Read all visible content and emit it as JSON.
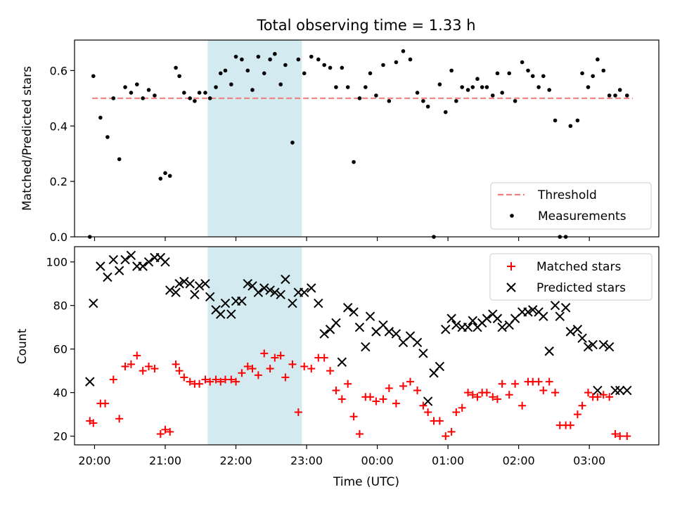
{
  "chart_data": [
    {
      "type": "scatter",
      "title": "Total observing time = 1.33 h",
      "xlabel": "",
      "ylabel": "Matched/Predicted stars",
      "xlim": [
        "19:43",
        "03:59"
      ],
      "ylim": [
        0,
        0.71
      ],
      "yticks": [
        0.0,
        0.2,
        0.4,
        0.6
      ],
      "ytick_labels": [
        "0.0",
        "0.2",
        "0.4",
        "0.6"
      ],
      "grid": false,
      "legend_position": "lower right",
      "shaded_span": {
        "x_start": "21:36",
        "x_end": "22:56",
        "color": "#d3eaf0"
      },
      "series": [
        {
          "name": "Threshold",
          "kind": "dashed-line",
          "color": "#f08080",
          "x": [
            "19:58",
            "23:00",
            "03:37"
          ],
          "y": [
            0.5,
            0.5,
            0.5
          ]
        },
        {
          "name": "Measurements",
          "kind": "scatter-dot",
          "color": "#000000",
          "x": [
            "19:56",
            "19:59",
            "20:05",
            "20:11",
            "20:16",
            "20:21",
            "20:26",
            "20:31",
            "20:36",
            "20:41",
            "20:46",
            "20:51",
            "20:56",
            "21:00",
            "21:04",
            "21:09",
            "21:12",
            "21:16",
            "21:21",
            "21:25",
            "21:29",
            "21:34",
            "21:38",
            "21:43",
            "21:47",
            "21:51",
            "21:56",
            "22:00",
            "22:05",
            "22:10",
            "22:14",
            "22:19",
            "22:24",
            "22:29",
            "22:33",
            "22:38",
            "22:42",
            "22:48",
            "22:53",
            "22:58",
            "23:04",
            "23:10",
            "23:15",
            "23:20",
            "23:25",
            "23:30",
            "23:35",
            "23:40",
            "23:45",
            "23:50",
            "23:54",
            "23:59",
            "00:05",
            "00:10",
            "00:16",
            "00:22",
            "00:28",
            "00:34",
            "00:39",
            "00:43",
            "00:48",
            "00:53",
            "00:58",
            "01:03",
            "01:07",
            "01:12",
            "01:17",
            "01:21",
            "01:25",
            "01:29",
            "01:33",
            "01:38",
            "01:42",
            "01:46",
            "01:52",
            "01:57",
            "02:03",
            "02:08",
            "02:12",
            "02:17",
            "02:21",
            "02:26",
            "02:31",
            "02:35",
            "02:40",
            "02:44",
            "02:50",
            "02:54",
            "02:59",
            "03:03",
            "03:07",
            "03:12",
            "03:17",
            "03:22",
            "03:26",
            "03:32"
          ],
          "y": [
            0.0,
            0.58,
            0.43,
            0.36,
            0.5,
            0.28,
            0.54,
            0.52,
            0.55,
            0.5,
            0.53,
            0.51,
            0.21,
            0.23,
            0.22,
            0.61,
            0.58,
            0.52,
            0.5,
            0.49,
            0.52,
            0.52,
            0.5,
            0.54,
            0.59,
            0.6,
            0.55,
            0.65,
            0.64,
            0.6,
            0.53,
            0.65,
            0.59,
            0.64,
            0.66,
            0.55,
            0.62,
            0.34,
            0.64,
            0.59,
            0.65,
            0.64,
            0.62,
            0.61,
            0.54,
            0.61,
            0.54,
            0.27,
            0.5,
            0.54,
            0.59,
            0.51,
            0.62,
            0.49,
            0.63,
            0.67,
            0.64,
            0.52,
            0.49,
            0.47,
            0.0,
            0.55,
            0.45,
            0.6,
            0.49,
            0.54,
            0.53,
            0.54,
            0.57,
            0.54,
            0.54,
            0.51,
            0.59,
            0.52,
            0.59,
            0.49,
            0.63,
            0.6,
            0.58,
            0.54,
            0.58,
            0.53,
            0.42,
            0.0,
            0.0,
            0.4,
            0.42,
            0.59,
            0.54,
            0.58,
            0.64,
            0.6,
            0.51,
            0.51,
            0.53,
            0.51
          ],
          "visible_points": 94
        }
      ]
    },
    {
      "type": "scatter",
      "title": "",
      "xlabel": "Time (UTC)",
      "ylabel": "Count",
      "xlim": [
        "19:43",
        "03:59"
      ],
      "ylim": [
        16,
        107
      ],
      "yticks": [
        20,
        40,
        60,
        80,
        100
      ],
      "ytick_labels": [
        "20",
        "40",
        "60",
        "80",
        "100"
      ],
      "xticks": [
        "20:00",
        "21:00",
        "22:00",
        "23:00",
        "00:00",
        "01:00",
        "02:00",
        "03:00"
      ],
      "xtick_labels": [
        "20:00",
        "21:00",
        "22:00",
        "23:00",
        "00:00",
        "01:00",
        "02:00",
        "03:00"
      ],
      "grid": false,
      "legend_position": "upper right",
      "shaded_span": {
        "x_start": "21:36",
        "x_end": "22:56",
        "color": "#d3eaf0"
      },
      "series": [
        {
          "name": "Matched stars",
          "kind": "plus",
          "color": "#ff0000",
          "x": [
            "19:56",
            "19:59",
            "20:05",
            "20:09",
            "20:16",
            "20:21",
            "20:26",
            "20:31",
            "20:36",
            "20:41",
            "20:46",
            "20:51",
            "20:56",
            "21:00",
            "21:04",
            "21:09",
            "21:12",
            "21:16",
            "21:21",
            "21:25",
            "21:29",
            "21:34",
            "21:38",
            "21:43",
            "21:47",
            "21:51",
            "21:56",
            "22:00",
            "22:05",
            "22:10",
            "22:14",
            "22:19",
            "22:24",
            "22:29",
            "22:33",
            "22:38",
            "22:42",
            "22:48",
            "22:53",
            "22:58",
            "23:04",
            "23:10",
            "23:15",
            "23:20",
            "23:25",
            "23:30",
            "23:35",
            "23:40",
            "23:45",
            "23:50",
            "23:54",
            "23:59",
            "00:05",
            "00:10",
            "00:16",
            "00:22",
            "00:28",
            "00:34",
            "00:39",
            "00:43",
            "00:48",
            "00:53",
            "00:58",
            "01:03",
            "01:07",
            "01:12",
            "01:17",
            "01:21",
            "01:25",
            "01:29",
            "01:33",
            "01:38",
            "01:42",
            "01:46",
            "01:52",
            "01:57",
            "02:03",
            "02:08",
            "02:12",
            "02:17",
            "02:21",
            "02:26",
            "02:31",
            "02:35",
            "02:40",
            "02:44",
            "02:50",
            "02:54",
            "02:59",
            "03:03",
            "03:07",
            "03:12",
            "03:17",
            "03:22",
            "03:26",
            "03:32"
          ],
          "y": [
            27,
            26,
            35,
            35,
            46,
            28,
            52,
            53,
            57,
            50,
            52,
            51,
            21,
            23,
            22,
            53,
            50,
            47,
            45,
            44,
            44,
            46,
            45,
            46,
            45,
            46,
            46,
            45,
            49,
            52,
            51,
            48,
            58,
            51,
            56,
            57,
            47,
            53,
            31,
            52,
            51,
            56,
            56,
            50,
            41,
            37,
            44,
            29,
            21,
            38,
            38,
            36,
            37,
            42,
            35,
            43,
            45,
            41,
            34,
            31,
            27,
            27,
            20,
            22,
            31,
            33,
            40,
            39,
            38,
            40,
            40,
            38,
            37,
            44,
            39,
            44,
            34,
            45,
            45,
            45,
            41,
            45,
            40,
            25,
            25,
            25,
            30,
            34,
            40,
            38,
            38,
            39,
            38,
            21,
            20,
            20
          ],
          "visible_points": 94
        },
        {
          "name": "Predicted stars",
          "kind": "x",
          "color": "#000000",
          "x": [
            "19:56",
            "19:59",
            "20:05",
            "20:11",
            "20:16",
            "20:21",
            "20:26",
            "20:31",
            "20:36",
            "20:41",
            "20:46",
            "20:51",
            "20:56",
            "21:00",
            "21:04",
            "21:09",
            "21:12",
            "21:16",
            "21:21",
            "21:25",
            "21:29",
            "21:34",
            "21:38",
            "21:43",
            "21:47",
            "21:51",
            "21:56",
            "22:00",
            "22:05",
            "22:10",
            "22:14",
            "22:19",
            "22:24",
            "22:29",
            "22:33",
            "22:38",
            "22:42",
            "22:48",
            "22:53",
            "22:58",
            "23:04",
            "23:10",
            "23:15",
            "23:20",
            "23:25",
            "23:30",
            "23:35",
            "23:40",
            "23:45",
            "23:50",
            "23:54",
            "23:59",
            "00:05",
            "00:10",
            "00:16",
            "00:22",
            "00:28",
            "00:34",
            "00:39",
            "00:43",
            "00:48",
            "00:53",
            "00:58",
            "01:03",
            "01:07",
            "01:12",
            "01:17",
            "01:21",
            "01:25",
            "01:29",
            "01:33",
            "01:38",
            "01:42",
            "01:46",
            "01:52",
            "01:57",
            "02:03",
            "02:08",
            "02:12",
            "02:17",
            "02:21",
            "02:26",
            "02:31",
            "02:35",
            "02:40",
            "02:44",
            "02:50",
            "02:54",
            "02:59",
            "03:03",
            "03:07",
            "03:12",
            "03:17",
            "03:22",
            "03:26",
            "03:32"
          ],
          "y": [
            45,
            81,
            98,
            93,
            101,
            96,
            101,
            103,
            98,
            98,
            100,
            102,
            102,
            100,
            87,
            86,
            90,
            91,
            90,
            85,
            89,
            90,
            84,
            78,
            76,
            81,
            76,
            82,
            82,
            90,
            89,
            86,
            88,
            87,
            86,
            85,
            92,
            81,
            86,
            86,
            88,
            81,
            67,
            69,
            72,
            54,
            79,
            77,
            70,
            61,
            75,
            68,
            71,
            68,
            67,
            63,
            66,
            63,
            58,
            36,
            49,
            52,
            69,
            74,
            71,
            70,
            70,
            73,
            70,
            72,
            74,
            76,
            74,
            70,
            71,
            74,
            77,
            77,
            78,
            77,
            75,
            59,
            80,
            75,
            79,
            68,
            69,
            65,
            61,
            62,
            41,
            62,
            61,
            41,
            41,
            41
          ],
          "visible_points": 94
        }
      ]
    }
  ]
}
